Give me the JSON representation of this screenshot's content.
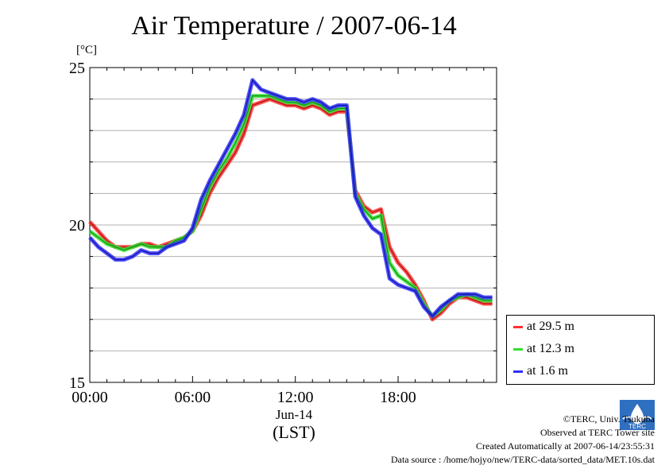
{
  "title": "Air Temperature / 2007-06-14",
  "y_unit": "[°C]",
  "x_date_label": "Jun-14",
  "x_zone_label": "(LST)",
  "legend": [
    "at 29.5 m",
    "at 12.3 m",
    "at 1.6 m"
  ],
  "credits": [
    "©TERC, Univ. Tsukuba",
    "Observed at TERC Tower site",
    "Created Automatically at 2007-06-14/23:55:31",
    "Data source : /home/hojyo/new/TERC-data/sorted_data/MET.10s.dat"
  ],
  "logo_text": "TERC",
  "colors": {
    "at 29.5 m": "#ff3030",
    "at 12.3 m": "#30e030",
    "at 1.6 m": "#3030ff"
  },
  "chart_data": {
    "type": "line",
    "title": "Air Temperature / 2007-06-14",
    "ylabel": "[°C]",
    "xlabel": "(LST)",
    "x": [
      0,
      0.5,
      1,
      1.5,
      2,
      2.5,
      3,
      3.5,
      4,
      4.5,
      5,
      5.5,
      6,
      6.5,
      7,
      7.5,
      8,
      8.5,
      9,
      9.5,
      10,
      10.5,
      11,
      11.5,
      12,
      12.5,
      13,
      13.5,
      14,
      14.5,
      15,
      15.5,
      16,
      16.5,
      17,
      17.5,
      18,
      18.5,
      19,
      19.5,
      20,
      20.5,
      21,
      21.5,
      22,
      22.5,
      23,
      23.5
    ],
    "x_unit": "hours of day (Jun-14, LST)",
    "xticks": [
      "00:00",
      "06:00",
      "12:00",
      "18:00"
    ],
    "xtick_values": [
      0,
      6,
      12,
      18
    ],
    "yticks": [
      15,
      20,
      25
    ],
    "xlim": [
      0,
      23.75
    ],
    "ylim": [
      15,
      25
    ],
    "grid": true,
    "legend_position": "lower-right, outside plot",
    "series": [
      {
        "name": "at 29.5 m",
        "values": [
          20.1,
          19.8,
          19.5,
          19.3,
          19.3,
          19.3,
          19.4,
          19.4,
          19.3,
          19.4,
          19.5,
          19.6,
          19.8,
          20.3,
          21.0,
          21.5,
          21.9,
          22.3,
          22.9,
          23.8,
          23.9,
          24.0,
          23.9,
          23.8,
          23.8,
          23.7,
          23.8,
          23.7,
          23.5,
          23.6,
          23.6,
          21.1,
          20.6,
          20.4,
          20.5,
          19.3,
          18.8,
          18.5,
          18.1,
          17.6,
          17.0,
          17.2,
          17.5,
          17.7,
          17.7,
          17.6,
          17.5,
          17.5
        ]
      },
      {
        "name": "at 12.3 m",
        "values": [
          19.8,
          19.6,
          19.4,
          19.3,
          19.2,
          19.3,
          19.4,
          19.3,
          19.3,
          19.3,
          19.5,
          19.6,
          19.8,
          20.5,
          21.2,
          21.7,
          22.1,
          22.6,
          23.2,
          24.1,
          24.1,
          24.1,
          24.0,
          23.9,
          23.9,
          23.8,
          23.9,
          23.8,
          23.6,
          23.7,
          23.7,
          21.0,
          20.5,
          20.2,
          20.3,
          18.8,
          18.4,
          18.2,
          18.0,
          17.5,
          17.1,
          17.3,
          17.6,
          17.7,
          17.8,
          17.7,
          17.6,
          17.6
        ]
      },
      {
        "name": "at 1.6 m",
        "values": [
          19.6,
          19.3,
          19.1,
          18.9,
          18.9,
          19.0,
          19.2,
          19.1,
          19.1,
          19.3,
          19.4,
          19.5,
          19.9,
          20.8,
          21.4,
          21.9,
          22.4,
          22.9,
          23.5,
          24.6,
          24.3,
          24.2,
          24.1,
          24.0,
          24.0,
          23.9,
          24.0,
          23.9,
          23.7,
          23.8,
          23.8,
          20.9,
          20.3,
          19.9,
          19.7,
          18.3,
          18.1,
          18.0,
          17.9,
          17.4,
          17.1,
          17.4,
          17.6,
          17.8,
          17.8,
          17.8,
          17.7,
          17.7
        ]
      }
    ]
  }
}
